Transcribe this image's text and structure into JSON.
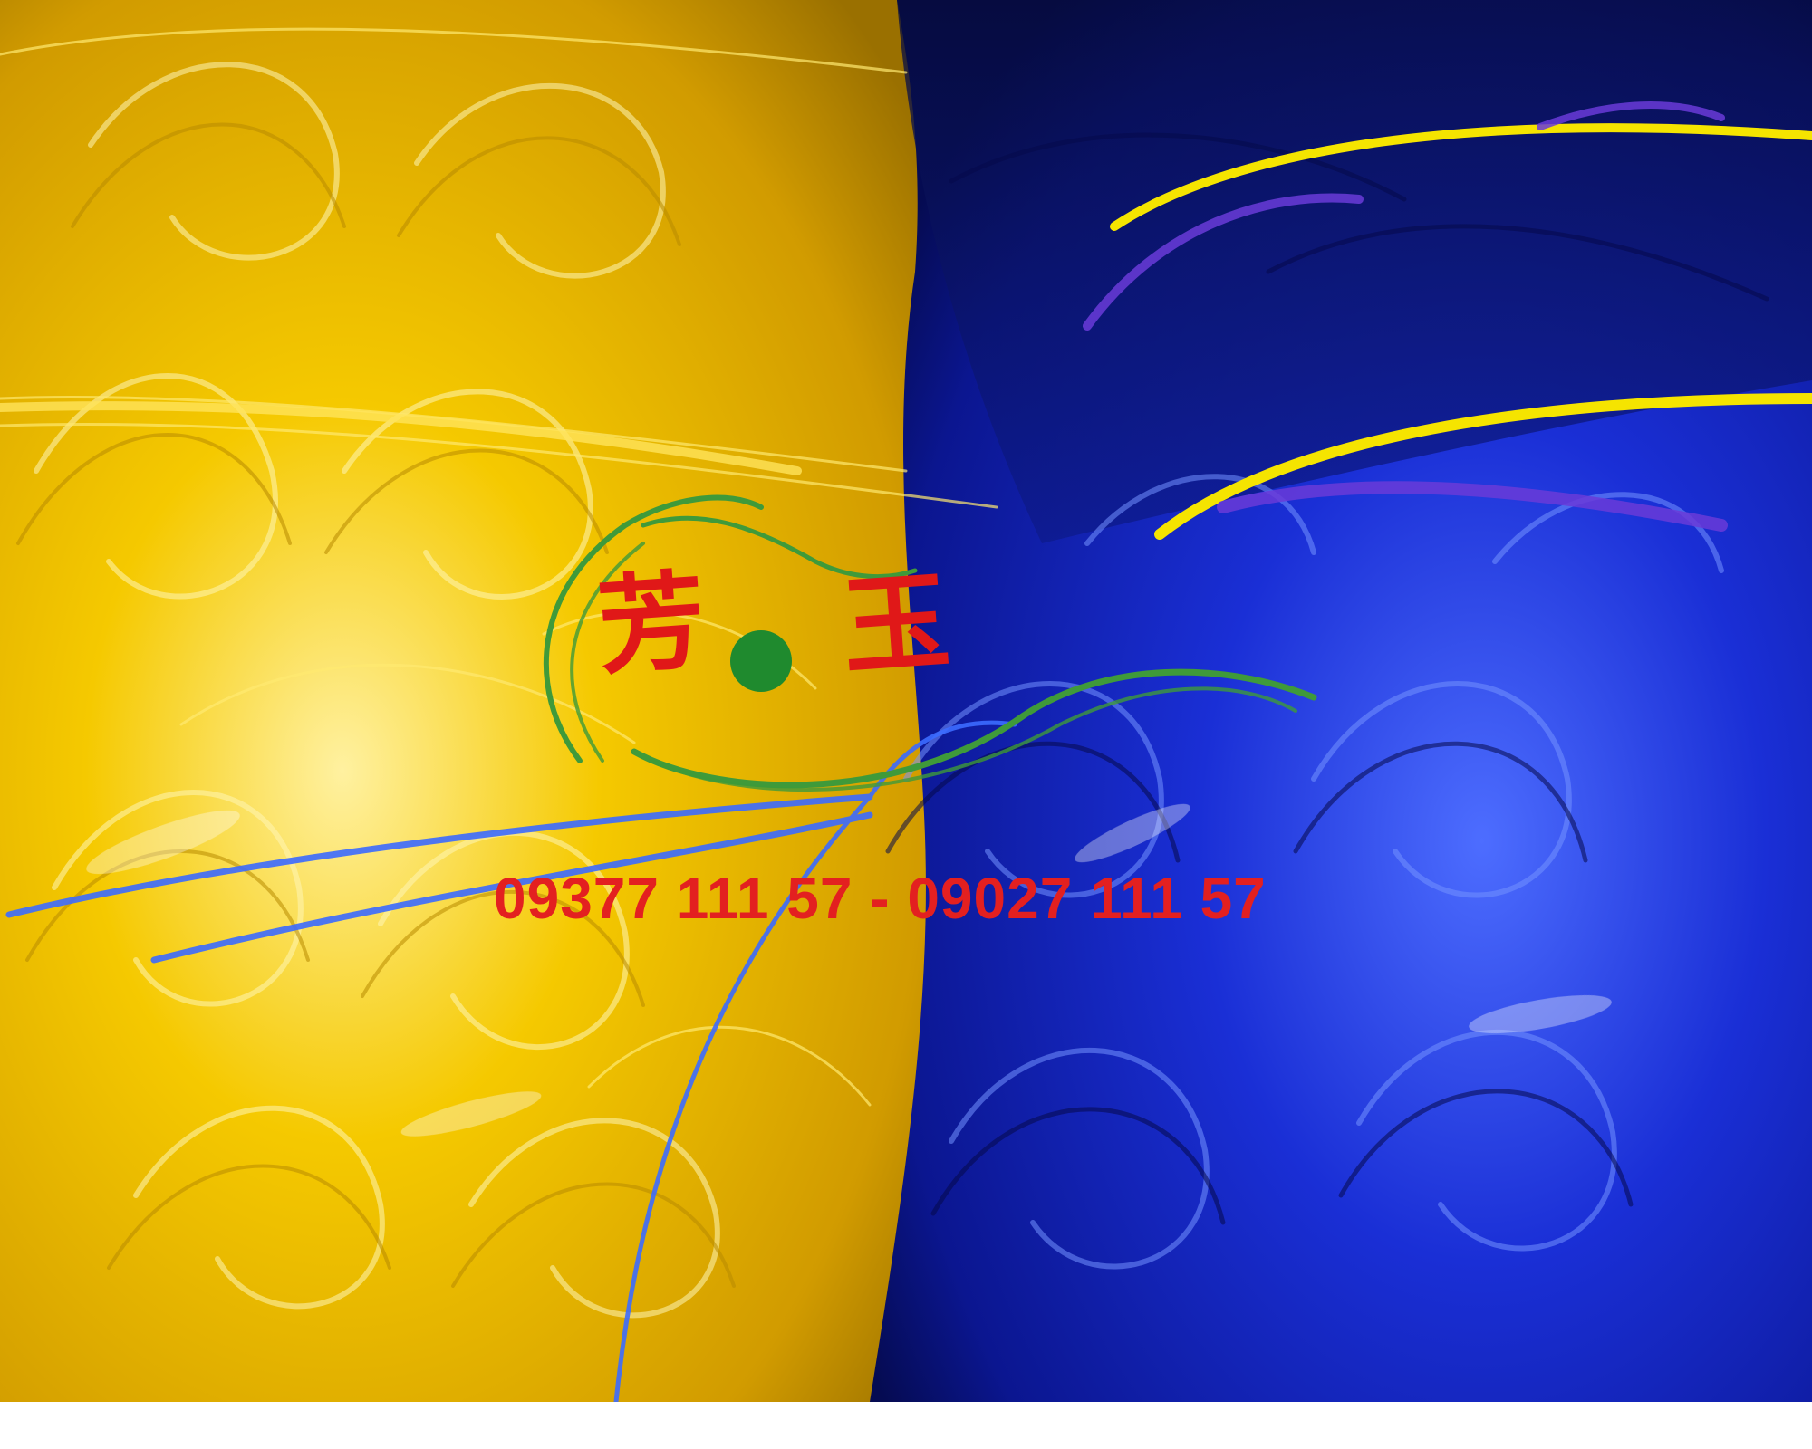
{
  "scene": {
    "subject": "yellow-and-blue-plastic-strap-coils",
    "colors": {
      "yellow_main": "#f2c400",
      "yellow_highlight": "#fff3a0",
      "yellow_shadow": "#a67c00",
      "blue_main": "#1a2fd6",
      "blue_highlight": "#6f8cff",
      "blue_shadow": "#08105e",
      "violet_strap": "#6a3bd8",
      "yellow_strap": "#f5e400"
    }
  },
  "watermark": {
    "char_1": "芳",
    "char_2": "玉",
    "phone": "09377 111 57 - 09027 111 57",
    "colors": {
      "text_red": "#e32020",
      "swoosh_green": "#3f9a3a",
      "dot_green": "#1f8a2e"
    }
  }
}
